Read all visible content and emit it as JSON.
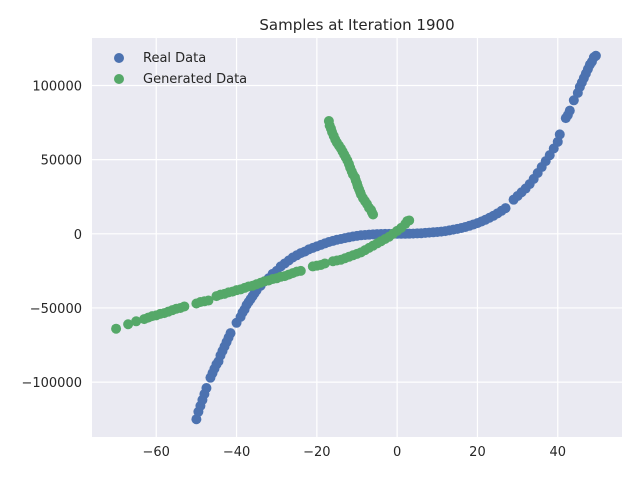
{
  "chart_data": {
    "type": "scatter",
    "title": "Samples at Iteration 1900",
    "xlabel": "",
    "ylabel": "",
    "xlim": [
      -76,
      56
    ],
    "ylim": [
      -137000,
      132000
    ],
    "grid": true,
    "legend_placement": "top-left",
    "x_ticks": [
      -60,
      -40,
      -20,
      0,
      20,
      40
    ],
    "x_tick_labels": [
      "−60",
      "−40",
      "−20",
      "0",
      "20",
      "40"
    ],
    "y_ticks": [
      -100000,
      -50000,
      0,
      50000,
      100000
    ],
    "y_tick_labels": [
      "−100000",
      "−50000",
      "0",
      "50000",
      "100000"
    ],
    "series": [
      {
        "name": "Real Data",
        "color": "#4c72b0",
        "points": [
          [
            -50,
            -125000
          ],
          [
            -49.5,
            -120000
          ],
          [
            -49,
            -116000
          ],
          [
            -48.5,
            -112000
          ],
          [
            -48,
            -108000
          ],
          [
            -47.5,
            -104000
          ],
          [
            -46.5,
            -97000
          ],
          [
            -46,
            -94000
          ],
          [
            -45.5,
            -91000
          ],
          [
            -45,
            -88000
          ],
          [
            -44.5,
            -86000
          ],
          [
            -44,
            -82000
          ],
          [
            -43.5,
            -79000
          ],
          [
            -43,
            -76000
          ],
          [
            -42.5,
            -73000
          ],
          [
            -42,
            -70000
          ],
          [
            -41.5,
            -67000
          ],
          [
            -40,
            -60000
          ],
          [
            -39,
            -56000
          ],
          [
            -38.5,
            -53000
          ],
          [
            -38,
            -51000
          ],
          [
            -37.5,
            -48000
          ],
          [
            -37,
            -46000
          ],
          [
            -36.5,
            -44000
          ],
          [
            -36,
            -42000
          ],
          [
            -35.5,
            -40000
          ],
          [
            -35,
            -38000
          ],
          [
            -34,
            -35000
          ],
          [
            -33,
            -32000
          ],
          [
            -32,
            -30000
          ],
          [
            -31,
            -27000
          ],
          [
            -30,
            -25000
          ],
          [
            -29,
            -22000
          ],
          [
            -28,
            -20000
          ],
          [
            -27,
            -18000
          ],
          [
            -26,
            -16000
          ],
          [
            -25,
            -14500
          ],
          [
            -24,
            -13000
          ],
          [
            -23,
            -12000
          ],
          [
            -22,
            -10500
          ],
          [
            -21,
            -9500
          ],
          [
            -20,
            -8500
          ],
          [
            -19,
            -7500
          ],
          [
            -18,
            -6500
          ],
          [
            -17,
            -5500
          ],
          [
            -16,
            -4800
          ],
          [
            -15,
            -4000
          ],
          [
            -14,
            -3500
          ],
          [
            -13,
            -2900
          ],
          [
            -12,
            -2300
          ],
          [
            -11,
            -1800
          ],
          [
            -10,
            -1400
          ],
          [
            -9,
            -1000
          ],
          [
            -8,
            -800
          ],
          [
            -7,
            -600
          ],
          [
            -6,
            -400
          ],
          [
            -5,
            -250
          ],
          [
            -4,
            -150
          ],
          [
            -3,
            -80
          ],
          [
            -2,
            -30
          ],
          [
            -1,
            -10
          ],
          [
            0,
            0
          ],
          [
            1,
            10
          ],
          [
            2,
            30
          ],
          [
            3,
            80
          ],
          [
            4,
            150
          ],
          [
            5,
            250
          ],
          [
            6,
            400
          ],
          [
            7,
            600
          ],
          [
            8,
            800
          ],
          [
            9,
            1000
          ],
          [
            10,
            1200
          ],
          [
            11,
            1500
          ],
          [
            12,
            1800
          ],
          [
            13,
            2300
          ],
          [
            14,
            2800
          ],
          [
            15,
            3300
          ],
          [
            16,
            3900
          ],
          [
            17,
            4600
          ],
          [
            18,
            5400
          ],
          [
            19,
            6300
          ],
          [
            20,
            7200
          ],
          [
            21,
            8300
          ],
          [
            22,
            9500
          ],
          [
            23,
            10800
          ],
          [
            24,
            12200
          ],
          [
            25,
            13800
          ],
          [
            26,
            15500
          ],
          [
            27,
            17300
          ],
          [
            29,
            23000
          ],
          [
            30,
            25500
          ],
          [
            31,
            28000
          ],
          [
            32,
            30500
          ],
          [
            33,
            33500
          ],
          [
            34,
            37000
          ],
          [
            35,
            41000
          ],
          [
            36,
            45000
          ],
          [
            37,
            49000
          ],
          [
            38,
            53000
          ],
          [
            39,
            57500
          ],
          [
            40,
            62000
          ],
          [
            40.5,
            67000
          ],
          [
            42,
            78000
          ],
          [
            42.5,
            80000
          ],
          [
            43,
            83000
          ],
          [
            44,
            90000
          ],
          [
            45,
            95000
          ],
          [
            45.5,
            99000
          ],
          [
            46,
            102000
          ],
          [
            46.5,
            105000
          ],
          [
            47,
            108000
          ],
          [
            47.5,
            111000
          ],
          [
            48,
            114000
          ],
          [
            48.5,
            116000
          ],
          [
            49,
            119000
          ],
          [
            49.5,
            120000
          ]
        ]
      },
      {
        "name": "Generated Data",
        "color": "#55a868",
        "points": [
          [
            -70,
            -64000
          ],
          [
            -67,
            -61000
          ],
          [
            -65,
            -59000
          ],
          [
            -63,
            -57500
          ],
          [
            -62,
            -56500
          ],
          [
            -61,
            -55500
          ],
          [
            -60,
            -55000
          ],
          [
            -59,
            -54000
          ],
          [
            -58,
            -53500
          ],
          [
            -57,
            -52500
          ],
          [
            -56,
            -51500
          ],
          [
            -55,
            -50500
          ],
          [
            -54,
            -50000
          ],
          [
            -53,
            -49000
          ],
          [
            -50,
            -47000
          ],
          [
            -49,
            -46000
          ],
          [
            -48,
            -45500
          ],
          [
            -47,
            -45000
          ],
          [
            -45,
            -42000
          ],
          [
            -44,
            -41000
          ],
          [
            -43,
            -40500
          ],
          [
            -42,
            -39500
          ],
          [
            -41,
            -39000
          ],
          [
            -40,
            -38000
          ],
          [
            -39,
            -37500
          ],
          [
            -38,
            -36500
          ],
          [
            -37,
            -35500
          ],
          [
            -36,
            -35000
          ],
          [
            -35,
            -34000
          ],
          [
            -34,
            -33000
          ],
          [
            -33,
            -32000
          ],
          [
            -32,
            -31500
          ],
          [
            -31,
            -30500
          ],
          [
            -30,
            -30000
          ],
          [
            -29,
            -29000
          ],
          [
            -28,
            -28500
          ],
          [
            -27,
            -27500
          ],
          [
            -26,
            -26500
          ],
          [
            -25,
            -25500
          ],
          [
            -24,
            -25000
          ],
          [
            -21,
            -22000
          ],
          [
            -20,
            -21500
          ],
          [
            -19,
            -21000
          ],
          [
            -18,
            -20000
          ],
          [
            -16,
            -18500
          ],
          [
            -15,
            -18000
          ],
          [
            -14,
            -17500
          ],
          [
            -13,
            -16500
          ],
          [
            -12,
            -15500
          ],
          [
            -11,
            -14500
          ],
          [
            -10,
            -13500
          ],
          [
            -9,
            -12500
          ],
          [
            -8,
            -11000
          ],
          [
            -7,
            -9500
          ],
          [
            -6,
            -8000
          ],
          [
            -5,
            -6500
          ],
          [
            -4,
            -5000
          ],
          [
            -3,
            -3500
          ],
          [
            -2,
            -2000
          ],
          [
            -1,
            0
          ],
          [
            0,
            2000
          ],
          [
            1,
            4000
          ],
          [
            2,
            6500
          ],
          [
            2.5,
            8500
          ],
          [
            3,
            9000
          ],
          [
            -6,
            13000
          ],
          [
            -6.3,
            14500
          ],
          [
            -6.5,
            16000
          ],
          [
            -7,
            17500
          ],
          [
            -7.5,
            20000
          ],
          [
            -8,
            22000
          ],
          [
            -8.5,
            24000
          ],
          [
            -9,
            26500
          ],
          [
            -9.2,
            28000
          ],
          [
            -9.5,
            30000
          ],
          [
            -9.8,
            32000
          ],
          [
            -10,
            34000
          ],
          [
            -10.3,
            36000
          ],
          [
            -10.5,
            38000
          ],
          [
            -11,
            40000
          ],
          [
            -11.3,
            42000
          ],
          [
            -11.7,
            44500
          ],
          [
            -12,
            47000
          ],
          [
            -12.4,
            49500
          ],
          [
            -12.8,
            51500
          ],
          [
            -13.2,
            53500
          ],
          [
            -13.6,
            55500
          ],
          [
            -14,
            57500
          ],
          [
            -14.5,
            59500
          ],
          [
            -15,
            61500
          ],
          [
            -15.4,
            63500
          ],
          [
            -15.8,
            66000
          ],
          [
            -16.2,
            68500
          ],
          [
            -16.5,
            71000
          ],
          [
            -16.8,
            73000
          ],
          [
            -17,
            76000
          ]
        ]
      }
    ]
  }
}
